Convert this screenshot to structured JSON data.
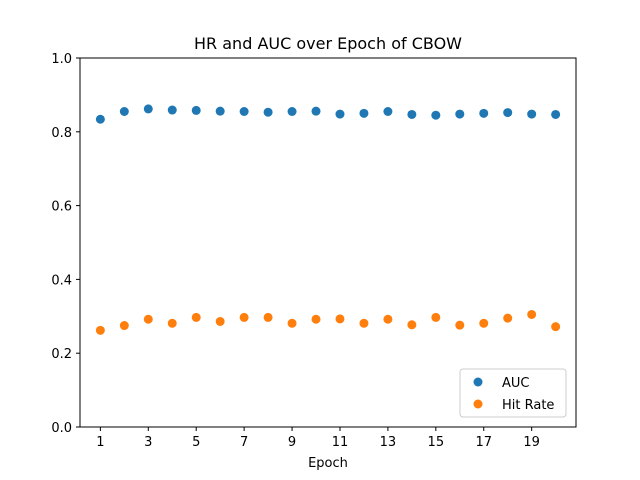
{
  "chart_data": {
    "type": "scatter",
    "title": "HR and AUC over Epoch of CBOW",
    "xlabel": "Epoch",
    "ylabel": "",
    "xlim": [
      0.15,
      20.85
    ],
    "ylim": [
      0.0,
      1.0
    ],
    "xticks": [
      1,
      3,
      5,
      7,
      9,
      11,
      13,
      15,
      17,
      19
    ],
    "yticks": [
      0.0,
      0.2,
      0.4,
      0.6,
      0.8,
      1.0
    ],
    "ytick_labels": [
      "0.0",
      "0.2",
      "0.4",
      "0.6",
      "0.8",
      "1.0"
    ],
    "grid": false,
    "legend_position": "lower-right",
    "x": [
      1,
      2,
      3,
      4,
      5,
      6,
      7,
      8,
      9,
      10,
      11,
      12,
      13,
      14,
      15,
      16,
      17,
      18,
      19,
      20
    ],
    "series": [
      {
        "name": "AUC",
        "color": "#1f77b4",
        "values": [
          0.834,
          0.855,
          0.862,
          0.859,
          0.858,
          0.856,
          0.855,
          0.853,
          0.855,
          0.856,
          0.848,
          0.85,
          0.855,
          0.847,
          0.845,
          0.848,
          0.85,
          0.852,
          0.848,
          0.847
        ]
      },
      {
        "name": "Hit Rate",
        "color": "#ff7f0e",
        "values": [
          0.262,
          0.275,
          0.292,
          0.281,
          0.297,
          0.286,
          0.297,
          0.297,
          0.281,
          0.292,
          0.293,
          0.281,
          0.292,
          0.277,
          0.297,
          0.276,
          0.281,
          0.295,
          0.305,
          0.272
        ]
      }
    ]
  }
}
